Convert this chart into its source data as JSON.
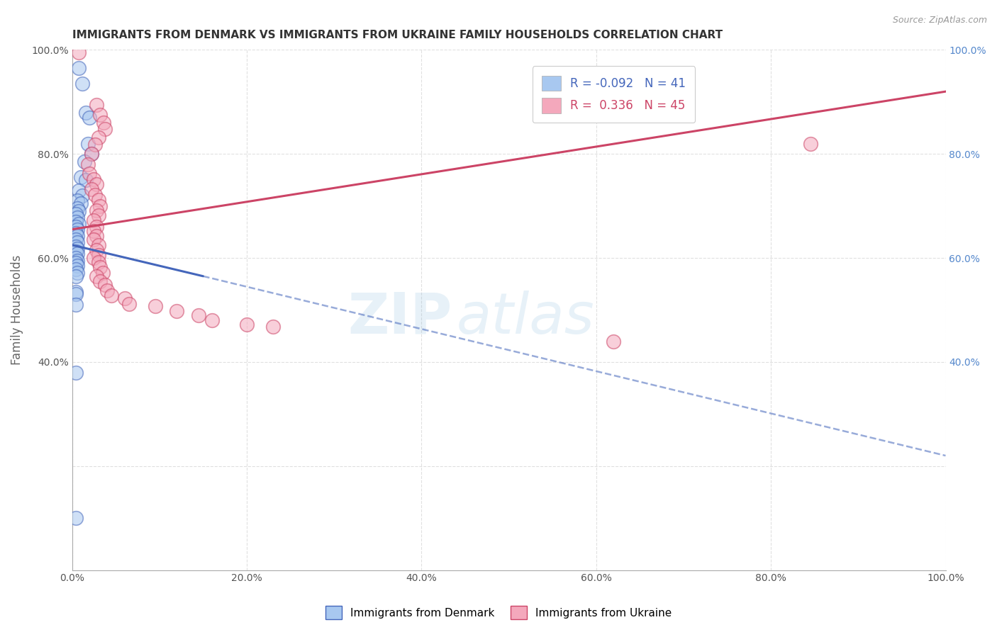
{
  "title": "IMMIGRANTS FROM DENMARK VS IMMIGRANTS FROM UKRAINE FAMILY HOUSEHOLDS CORRELATION CHART",
  "source_text": "Source: ZipAtlas.com",
  "ylabel": "Family Households",
  "legend_labels": [
    "Immigrants from Denmark",
    "Immigrants from Ukraine"
  ],
  "R_denmark": -0.092,
  "N_denmark": 41,
  "R_ukraine": 0.336,
  "N_ukraine": 45,
  "color_denmark": "#A8C8F0",
  "color_ukraine": "#F4A8BC",
  "line_color_denmark": "#4466BB",
  "line_color_ukraine": "#CC4466",
  "watermark_zip": "ZIP",
  "watermark_atlas": "atlas",
  "xlim": [
    0.0,
    1.0
  ],
  "ylim": [
    0.0,
    1.0
  ],
  "x_ticks": [
    0.0,
    0.2,
    0.4,
    0.6,
    0.8,
    1.0
  ],
  "x_tick_labels": [
    "0.0%",
    "20.0%",
    "40.0%",
    "60.0%",
    "80.0%",
    "100.0%"
  ],
  "y_ticks": [
    0.0,
    0.2,
    0.4,
    0.6,
    0.8,
    1.0
  ],
  "y_tick_labels_left": [
    "",
    "",
    "40.0%",
    "60.0%",
    "80.0%",
    "100.0%"
  ],
  "y_tick_labels_right": [
    "",
    "",
    "40.0%",
    "60.0%",
    "80.0%",
    "100.0%"
  ],
  "denmark_line_solid": [
    [
      0.0,
      0.625
    ],
    [
      0.15,
      0.565
    ]
  ],
  "denmark_line_dashed": [
    [
      0.15,
      0.565
    ],
    [
      1.0,
      0.22
    ]
  ],
  "ukraine_line": [
    [
      0.0,
      0.655
    ],
    [
      1.0,
      0.92
    ]
  ],
  "denmark_points": [
    [
      0.008,
      0.965
    ],
    [
      0.012,
      0.935
    ],
    [
      0.016,
      0.88
    ],
    [
      0.02,
      0.87
    ],
    [
      0.018,
      0.82
    ],
    [
      0.022,
      0.8
    ],
    [
      0.014,
      0.785
    ],
    [
      0.01,
      0.755
    ],
    [
      0.016,
      0.75
    ],
    [
      0.008,
      0.73
    ],
    [
      0.012,
      0.72
    ],
    [
      0.006,
      0.71
    ],
    [
      0.01,
      0.705
    ],
    [
      0.006,
      0.695
    ],
    [
      0.008,
      0.69
    ],
    [
      0.004,
      0.685
    ],
    [
      0.006,
      0.678
    ],
    [
      0.004,
      0.67
    ],
    [
      0.008,
      0.665
    ],
    [
      0.004,
      0.66
    ],
    [
      0.006,
      0.655
    ],
    [
      0.004,
      0.648
    ],
    [
      0.006,
      0.642
    ],
    [
      0.004,
      0.635
    ],
    [
      0.006,
      0.63
    ],
    [
      0.004,
      0.622
    ],
    [
      0.006,
      0.618
    ],
    [
      0.004,
      0.612
    ],
    [
      0.006,
      0.608
    ],
    [
      0.004,
      0.6
    ],
    [
      0.006,
      0.595
    ],
    [
      0.004,
      0.59
    ],
    [
      0.006,
      0.585
    ],
    [
      0.004,
      0.578
    ],
    [
      0.006,
      0.572
    ],
    [
      0.004,
      0.565
    ],
    [
      0.004,
      0.535
    ],
    [
      0.004,
      0.53
    ],
    [
      0.004,
      0.51
    ],
    [
      0.004,
      0.38
    ],
    [
      0.004,
      0.1
    ]
  ],
  "ukraine_points": [
    [
      0.008,
      0.995
    ],
    [
      0.028,
      0.895
    ],
    [
      0.032,
      0.875
    ],
    [
      0.036,
      0.86
    ],
    [
      0.038,
      0.848
    ],
    [
      0.03,
      0.832
    ],
    [
      0.026,
      0.818
    ],
    [
      0.022,
      0.8
    ],
    [
      0.018,
      0.78
    ],
    [
      0.02,
      0.762
    ],
    [
      0.025,
      0.752
    ],
    [
      0.028,
      0.742
    ],
    [
      0.022,
      0.732
    ],
    [
      0.026,
      0.722
    ],
    [
      0.03,
      0.712
    ],
    [
      0.032,
      0.7
    ],
    [
      0.028,
      0.692
    ],
    [
      0.03,
      0.682
    ],
    [
      0.025,
      0.672
    ],
    [
      0.028,
      0.66
    ],
    [
      0.025,
      0.652
    ],
    [
      0.028,
      0.642
    ],
    [
      0.025,
      0.635
    ],
    [
      0.03,
      0.625
    ],
    [
      0.028,
      0.615
    ],
    [
      0.03,
      0.605
    ],
    [
      0.025,
      0.6
    ],
    [
      0.03,
      0.592
    ],
    [
      0.032,
      0.582
    ],
    [
      0.035,
      0.572
    ],
    [
      0.028,
      0.565
    ],
    [
      0.032,
      0.555
    ],
    [
      0.038,
      0.548
    ],
    [
      0.04,
      0.538
    ],
    [
      0.045,
      0.528
    ],
    [
      0.06,
      0.522
    ],
    [
      0.065,
      0.512
    ],
    [
      0.095,
      0.508
    ],
    [
      0.12,
      0.498
    ],
    [
      0.145,
      0.49
    ],
    [
      0.16,
      0.48
    ],
    [
      0.2,
      0.472
    ],
    [
      0.23,
      0.468
    ],
    [
      0.62,
      0.44
    ],
    [
      0.845,
      0.82
    ]
  ],
  "background_color": "#FFFFFF",
  "grid_color": "#CCCCCC",
  "title_color": "#333333",
  "axis_label_color": "#666666",
  "tick_color_right": "#5588CC"
}
